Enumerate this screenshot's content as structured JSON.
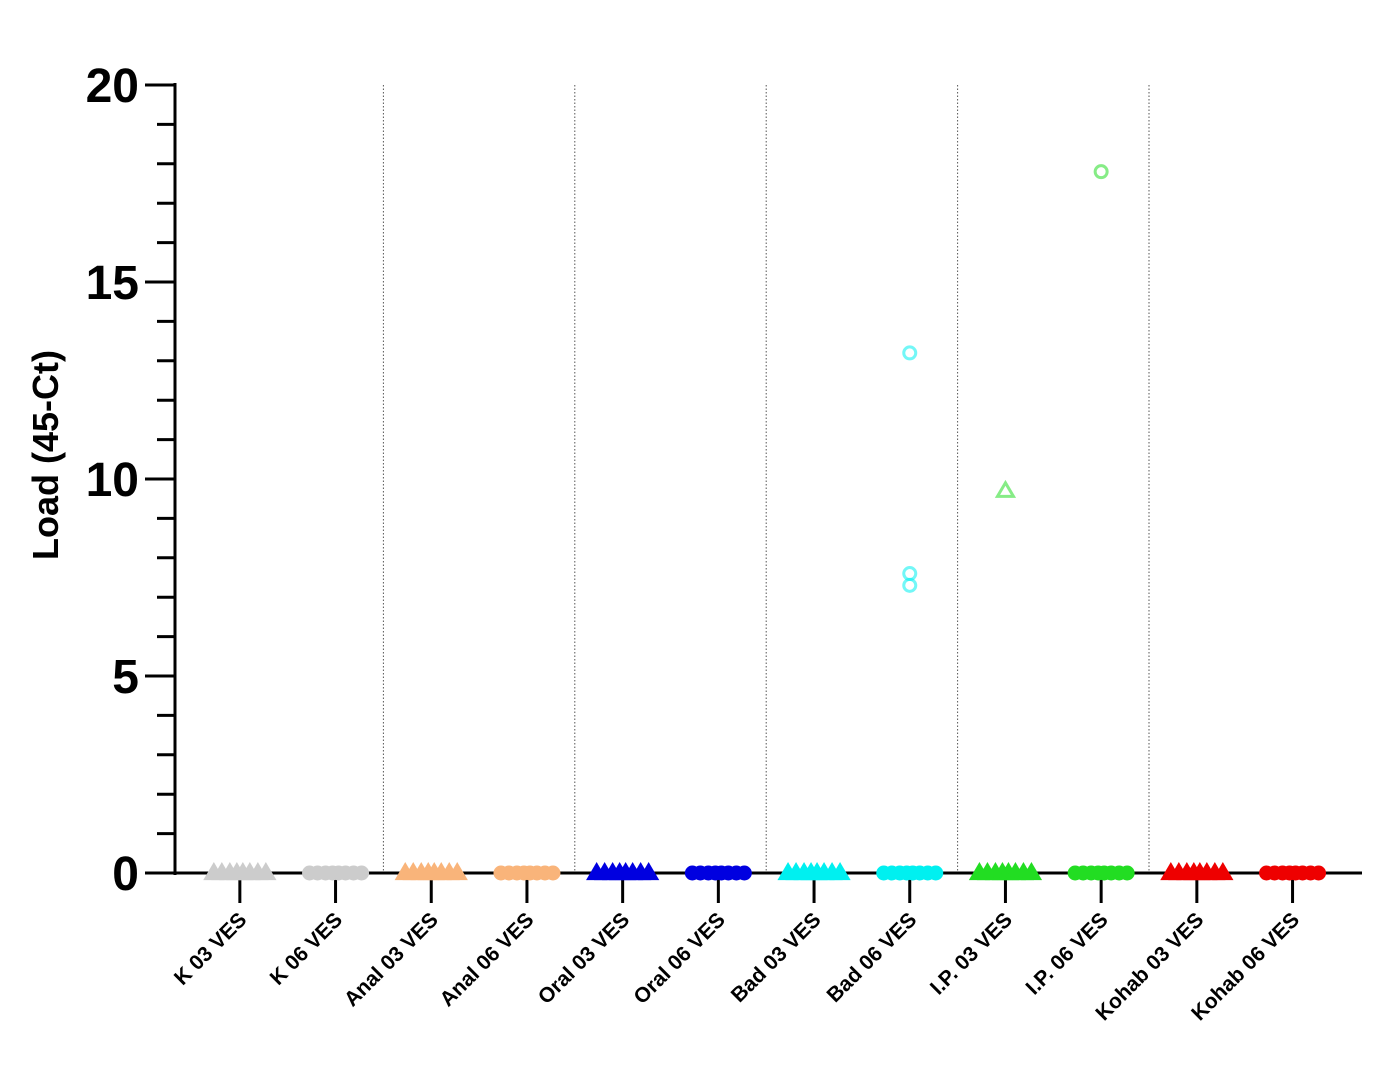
{
  "chart_data": {
    "type": "dot",
    "y_label": "Load (45-Ct)",
    "categories": [
      "K 03 VES",
      "K 06 VES",
      "Anal 03 VES",
      "Anal 06 VES",
      "Oral 03 VES",
      "Oral 06 VES",
      "Bad 03 VES",
      "Bad 06 VES",
      "I.P. 03 VES",
      "I.P. 06 VES",
      "Kohab 03 VES",
      "Kohab 06 VES"
    ],
    "groups": [
      {
        "color": "#cccccc",
        "marker": "triangle",
        "values": [
          0,
          0,
          0,
          0,
          0,
          0,
          0,
          0
        ]
      },
      {
        "color": "#cccccc",
        "marker": "circle",
        "values": [
          0,
          0,
          0,
          0,
          0,
          0,
          0,
          0
        ]
      },
      {
        "color": "#f9b47a",
        "marker": "triangle",
        "values": [
          0,
          0,
          0,
          0,
          0,
          0,
          0,
          0
        ]
      },
      {
        "color": "#f9b47a",
        "marker": "circle",
        "values": [
          0,
          0,
          0,
          0,
          0,
          0,
          0,
          0
        ]
      },
      {
        "color": "#0000e0",
        "marker": "triangle",
        "values": [
          0,
          0,
          0,
          0,
          0,
          0,
          0,
          0
        ]
      },
      {
        "color": "#0000e0",
        "marker": "circle",
        "values": [
          0,
          0,
          0,
          0,
          0,
          0,
          0,
          0
        ]
      },
      {
        "color": "#00f0f0",
        "marker": "triangle",
        "values": [
          0,
          0,
          0,
          0,
          0,
          0,
          0,
          0
        ]
      },
      {
        "color": "#00f0f0",
        "marker": "circle",
        "values": [
          13.2,
          7.6,
          7.3,
          0,
          0,
          0,
          0,
          0,
          0,
          0,
          0
        ]
      },
      {
        "color": "#22dd22",
        "marker": "triangle",
        "values": [
          9.7,
          0,
          0,
          0,
          0,
          0,
          0,
          0,
          0
        ]
      },
      {
        "color": "#22dd22",
        "marker": "circle",
        "values": [
          17.8,
          0,
          0,
          0,
          0,
          0,
          0,
          0,
          0
        ]
      },
      {
        "color": "#ee0000",
        "marker": "triangle",
        "values": [
          0,
          0,
          0,
          0,
          0,
          0,
          0,
          0
        ]
      },
      {
        "color": "#ee0000",
        "marker": "circle",
        "values": [
          0,
          0,
          0,
          0,
          0,
          0,
          0,
          0
        ]
      }
    ],
    "ylim": [
      0,
      20
    ],
    "yticks": [
      0,
      5,
      10,
      15,
      20
    ],
    "yminorticks": [
      1,
      2,
      3,
      4,
      6,
      7,
      8,
      9,
      11,
      12,
      13,
      14,
      16,
      17,
      18,
      19
    ]
  }
}
